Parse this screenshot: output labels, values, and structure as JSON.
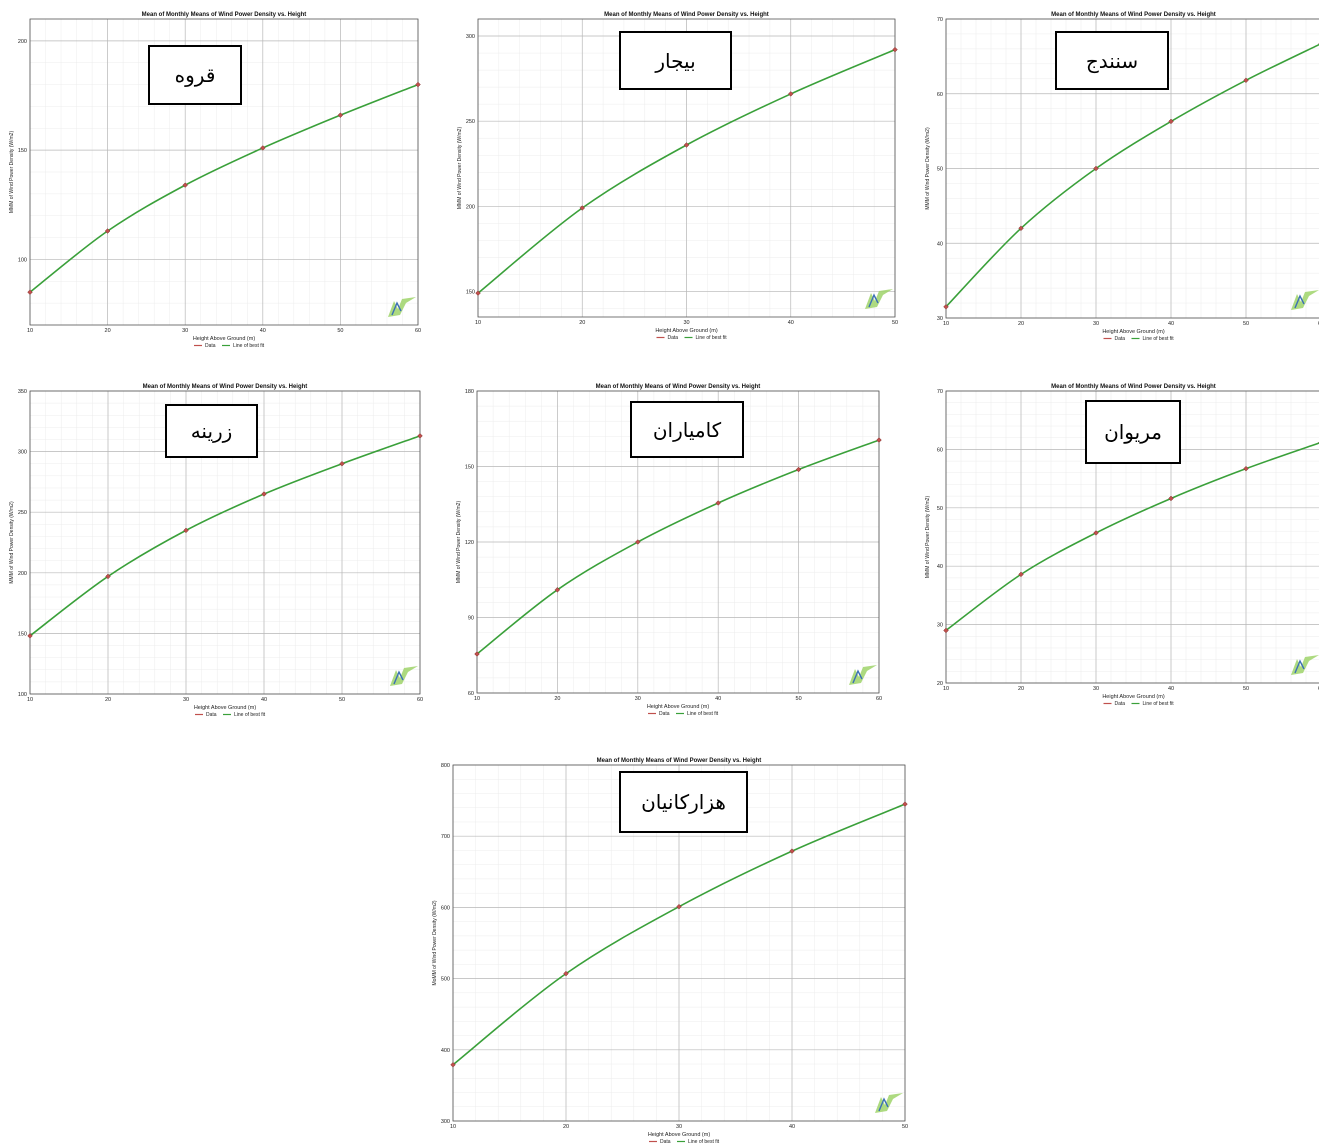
{
  "chart_data": [
    {
      "type": "line",
      "station": "قروه",
      "title": "Mean of Monthly Means of Wind Power Density vs. Height",
      "xlabel": "Height Above Ground (m)",
      "ylabel": "MMM of Wind Power Density (W/m2)",
      "x": [
        10,
        20,
        30,
        40,
        50,
        60
      ],
      "xticks": [
        10,
        20,
        30,
        40,
        50,
        60
      ],
      "xlim": [
        10,
        60
      ],
      "yticks": [
        100,
        150,
        200
      ],
      "ylim": [
        70,
        210
      ],
      "series": [
        {
          "name": "Data",
          "values": [
            85,
            113,
            134,
            151,
            166,
            180
          ]
        },
        {
          "name": "Line of best fit",
          "values": [
            85,
            113,
            134,
            151,
            166,
            180
          ]
        }
      ],
      "grid": true,
      "legend": "bottom-center"
    },
    {
      "type": "line",
      "station": "بیجار",
      "title": "Mean of Monthly Means of Wind Power Density vs. Height",
      "xlabel": "Height Above Ground (m)",
      "ylabel": "MMM of Wind Power Density (W/m2)",
      "x": [
        10,
        20,
        30,
        40,
        50
      ],
      "xticks": [
        10,
        20,
        30,
        40,
        50
      ],
      "xlim": [
        10,
        50
      ],
      "yticks": [
        150,
        200,
        250,
        300
      ],
      "ylim": [
        135,
        310
      ],
      "series": [
        {
          "name": "Data",
          "values": [
            149,
            199,
            236,
            266,
            292
          ]
        },
        {
          "name": "Line of best fit",
          "values": [
            149,
            199,
            236,
            266,
            292
          ]
        }
      ],
      "grid": true,
      "legend": "bottom-center"
    },
    {
      "type": "line",
      "station": "سنندج",
      "title": "Mean of Monthly Means of Wind Power Density vs. Height",
      "xlabel": "Height Above Ground (m)",
      "ylabel": "MMM of Wind Power Density (W/m2)",
      "x": [
        10,
        20,
        30,
        40,
        50,
        60
      ],
      "xticks": [
        10,
        20,
        30,
        40,
        50,
        60
      ],
      "xlim": [
        10,
        60
      ],
      "yticks": [
        30,
        40,
        50,
        60,
        70
      ],
      "ylim": [
        30,
        70
      ],
      "series": [
        {
          "name": "Data",
          "values": [
            31.5,
            42,
            50,
            56.3,
            61.8,
            66.7
          ]
        },
        {
          "name": "Line of best fit",
          "values": [
            31.5,
            42,
            50,
            56.3,
            61.8,
            66.7
          ]
        }
      ],
      "grid": true,
      "legend": "bottom-center"
    },
    {
      "type": "line",
      "station": "زرینه",
      "title": "Mean of Monthly Means of Wind Power Density vs. Height",
      "xlabel": "Height Above Ground (m)",
      "ylabel": "MMM of Wind Power Density (W/m2)",
      "x": [
        10,
        20,
        30,
        40,
        50,
        60
      ],
      "xticks": [
        10,
        20,
        30,
        40,
        50,
        60
      ],
      "xlim": [
        10,
        60
      ],
      "yticks": [
        100,
        150,
        200,
        250,
        300,
        350
      ],
      "ylim": [
        100,
        350
      ],
      "series": [
        {
          "name": "Data",
          "values": [
            148,
            197,
            235,
            265,
            290,
            313
          ]
        },
        {
          "name": "Line of best fit",
          "values": [
            148,
            197,
            235,
            265,
            290,
            313
          ]
        }
      ],
      "grid": true,
      "legend": "bottom-center"
    },
    {
      "type": "line",
      "station": "کامیاران",
      "title": "Mean of Monthly Means of Wind Power Density vs. Height",
      "xlabel": "Height Above Ground (m)",
      "ylabel": "MMM of Wind Power Density (W/m2)",
      "x": [
        10,
        20,
        30,
        40,
        50,
        60
      ],
      "xticks": [
        10,
        20,
        30,
        40,
        50,
        60
      ],
      "xlim": [
        10,
        60
      ],
      "yticks": [
        60,
        90,
        120,
        150,
        180
      ],
      "ylim": [
        60,
        180
      ],
      "series": [
        {
          "name": "Data",
          "values": [
            75.5,
            101,
            120,
            135.5,
            148.8,
            160.5
          ]
        },
        {
          "name": "Line of best fit",
          "values": [
            75.5,
            101,
            120,
            135.5,
            148.8,
            160.5
          ]
        }
      ],
      "grid": true,
      "legend": "bottom-center"
    },
    {
      "type": "line",
      "station": "مریوان",
      "title": "Mean of Monthly Means of Wind Power Density vs. Height",
      "xlabel": "Height Above Ground (m)",
      "ylabel": "MMM of Wind Power Density (W/m2)",
      "x": [
        10,
        20,
        30,
        40,
        50,
        60
      ],
      "xticks": [
        10,
        20,
        30,
        40,
        50,
        60
      ],
      "xlim": [
        10,
        60
      ],
      "yticks": [
        20,
        30,
        40,
        50,
        60,
        70
      ],
      "ylim": [
        20,
        70
      ],
      "series": [
        {
          "name": "Data",
          "values": [
            29,
            38.6,
            45.7,
            51.6,
            56.7,
            61.2
          ]
        },
        {
          "name": "Line of best fit",
          "values": [
            29,
            38.6,
            45.7,
            51.6,
            56.7,
            61.2
          ]
        }
      ],
      "grid": true,
      "legend": "bottom-center"
    },
    {
      "type": "line",
      "station": "هزارکانیان",
      "title": "Mean of Monthly Means of Wind Power Density vs. Height",
      "xlabel": "Height Above Ground (m)",
      "ylabel": "MoMM of Wind Power Density (W/m2)",
      "x": [
        10,
        20,
        30,
        40,
        50
      ],
      "xticks": [
        10,
        20,
        30,
        40,
        50
      ],
      "xlim": [
        10,
        50
      ],
      "yticks": [
        300,
        400,
        500,
        600,
        700,
        800
      ],
      "ylim": [
        300,
        800
      ],
      "series": [
        {
          "name": "Data",
          "values": [
            379,
            507,
            601,
            679,
            745
          ]
        },
        {
          "name": "Line of best fit",
          "values": [
            379,
            507,
            601,
            679,
            745
          ]
        }
      ],
      "grid": true,
      "legend": "bottom-center"
    }
  ],
  "colors": {
    "data": "#c0504d",
    "fit": "#3aa03a",
    "grid_major": "#b8b8b8",
    "grid_minor": "#ececec"
  },
  "icons": {
    "logo": "wind-turbine-logo-icon"
  }
}
